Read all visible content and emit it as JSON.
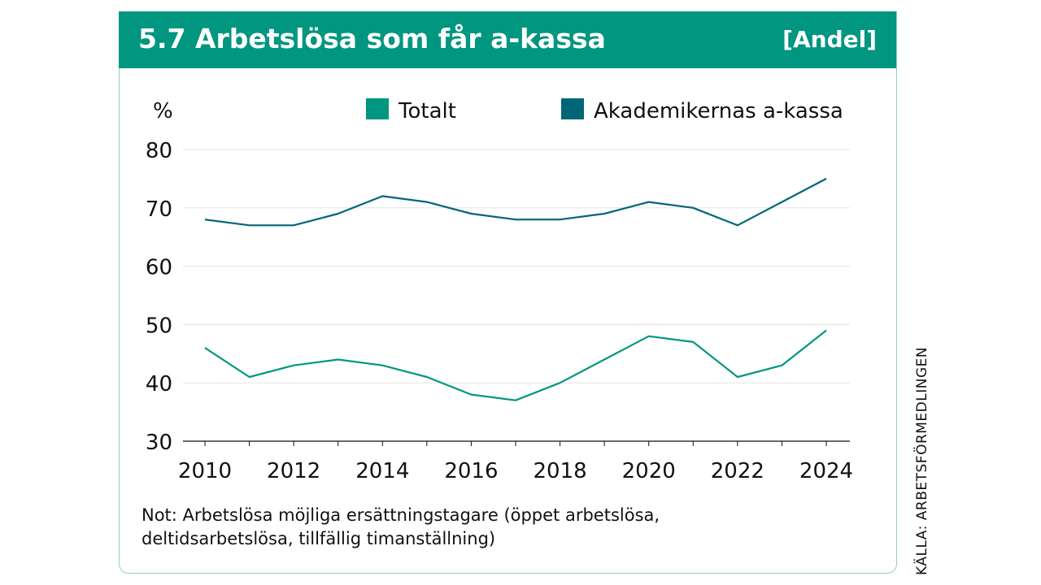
{
  "header": {
    "title": "5.7  Arbetslösa som får a-kassa",
    "unit_label": "[Andel]"
  },
  "note": "Not: Arbetslösa möjliga ersättningstagare (öppet arbetslösa, deltidsarbetslösa, tillfällig timanställning)",
  "source": "KÄLLA: ARBETSFÖRMEDLINGEN",
  "colors": {
    "header": "#00967f",
    "totalt": "#00967f",
    "akademikerna": "#006677",
    "grid": "#e3e3e3"
  },
  "chart_data": {
    "type": "line",
    "ylabel": "%",
    "ylim": [
      30,
      80
    ],
    "yticks": [
      30,
      40,
      50,
      60,
      70,
      80
    ],
    "xlim": [
      2010,
      2024
    ],
    "xticks": [
      2010,
      2012,
      2014,
      2016,
      2018,
      2020,
      2022,
      2024
    ],
    "x": [
      2010,
      2011,
      2012,
      2013,
      2014,
      2015,
      2016,
      2017,
      2018,
      2019,
      2020,
      2021,
      2022,
      2023,
      2024
    ],
    "legend_position": "top",
    "grid": true,
    "series": [
      {
        "name": "Totalt",
        "color": "#00967f",
        "values": [
          46,
          41,
          43,
          44,
          43,
          41,
          38,
          37,
          40,
          44,
          48,
          47,
          41,
          43,
          49
        ]
      },
      {
        "name": "Akademikernas a-kassa",
        "color": "#006677",
        "values": [
          68,
          67,
          67,
          69,
          72,
          71,
          69,
          68,
          68,
          69,
          71,
          70,
          67,
          71,
          75
        ]
      }
    ]
  }
}
